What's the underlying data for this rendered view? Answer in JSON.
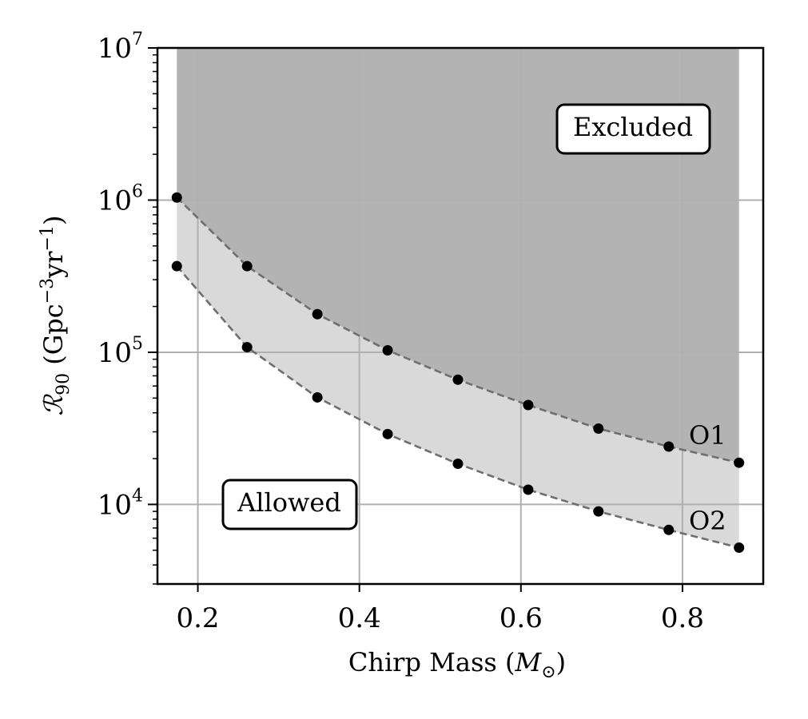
{
  "chart_data": {
    "type": "line",
    "xlabel_prefix": "Chirp Mass",
    "xlabel_unit": "M",
    "ylabel": "R90 (Gpc−3yr−1)",
    "xlim": [
      0.15,
      0.9
    ],
    "ylim": [
      3000,
      10000000
    ],
    "yscale": "log",
    "grid": true,
    "x_ticks": [
      0.2,
      0.4,
      0.6,
      0.8
    ],
    "x_tick_labels": [
      "0.2",
      "0.4",
      "0.6",
      "0.8"
    ],
    "y_ticks": [
      10000,
      100000,
      1000000,
      10000000
    ],
    "y_tick_labels": [
      {
        "base": "10",
        "exp": "4"
      },
      {
        "base": "10",
        "exp": "5"
      },
      {
        "base": "10",
        "exp": "6"
      },
      {
        "base": "10",
        "exp": "7"
      }
    ],
    "x": [
      0.174,
      0.261,
      0.348,
      0.435,
      0.522,
      0.609,
      0.696,
      0.783,
      0.87
    ],
    "series": [
      {
        "name": "O1",
        "values": [
          1040000,
          368000,
          178000,
          103000,
          66000,
          45000,
          31500,
          24000,
          18800
        ]
      },
      {
        "name": "O2",
        "values": [
          368000,
          108000,
          50500,
          29000,
          18500,
          12500,
          9000,
          6800,
          5200
        ]
      }
    ],
    "regions": [
      {
        "label": "Excluded",
        "color": "#b3b3b3"
      },
      {
        "label": "Allowed",
        "color": "#d9d9d9"
      }
    ],
    "colors": {
      "line": "#6e6e6e",
      "marker": "#000000",
      "grid": "#b0b0b0"
    }
  }
}
